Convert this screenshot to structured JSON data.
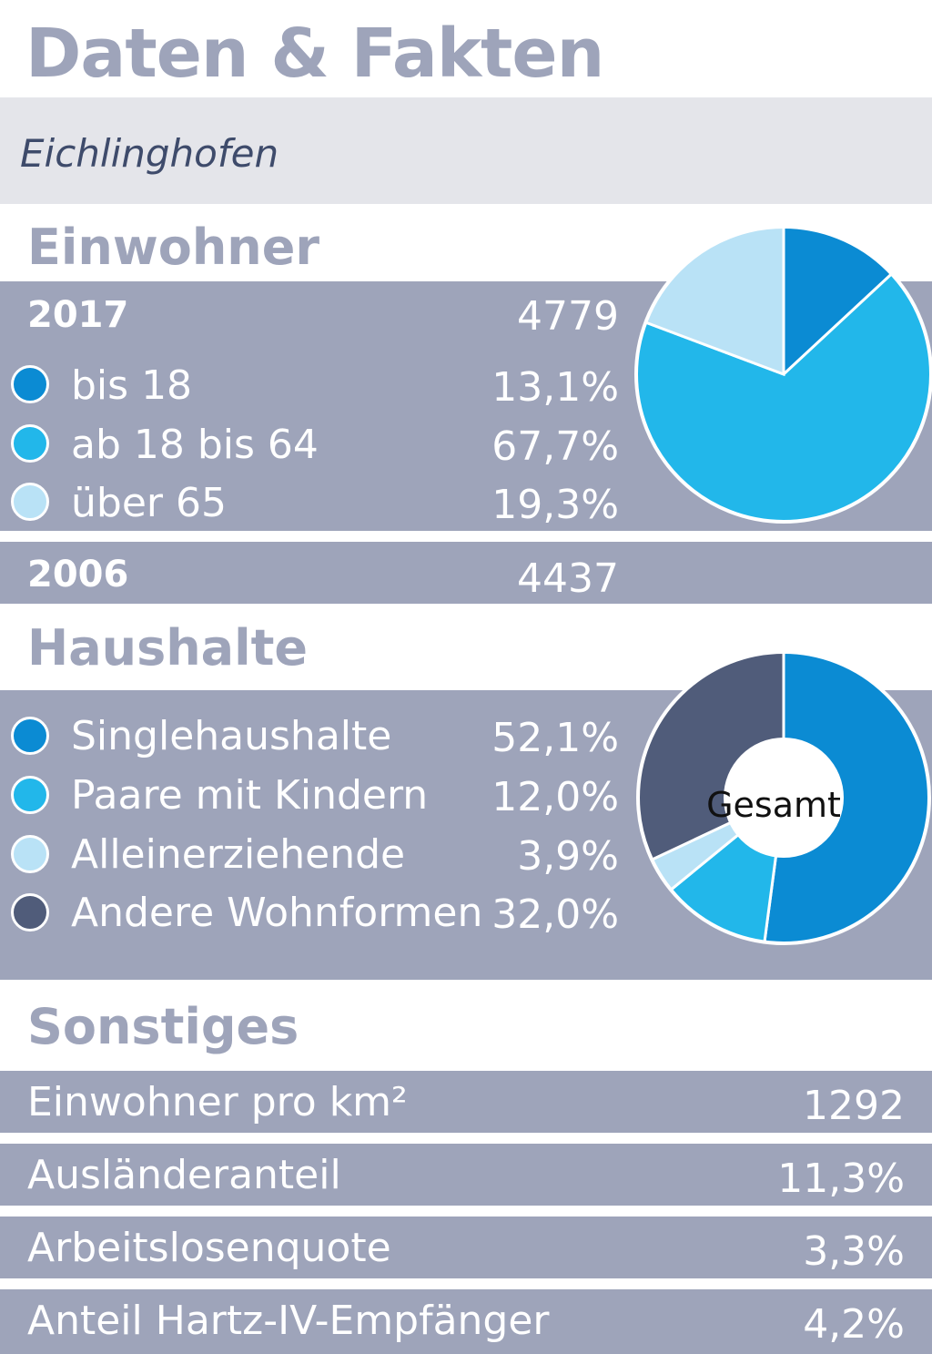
{
  "header": {
    "title": "Daten & Fakten",
    "location": "Eichlinghofen"
  },
  "einwohner": {
    "heading": "Einwohner",
    "rows": [
      {
        "year": "2017",
        "value": "4779"
      },
      {
        "year": "2006",
        "value": "4437"
      }
    ],
    "legend": [
      {
        "label": "bis 18",
        "value": "13,1%",
        "color": "#0b8bd3"
      },
      {
        "label": "ab 18 bis 64",
        "value": "67,7%",
        "color": "#22b7ea"
      },
      {
        "label": "über 65",
        "value": "19,3%",
        "color": "#b9e2f6"
      }
    ]
  },
  "haushalte": {
    "heading": "Haushalte",
    "center_label": "Gesamt",
    "legend": [
      {
        "label": "Singlehaushalte",
        "value": "52,1%",
        "color": "#0b8bd3"
      },
      {
        "label": "Paare mit Kindern",
        "value": "12,0%",
        "color": "#22b7ea"
      },
      {
        "label": "Alleinerziehende",
        "value": "3,9%",
        "color": "#b9e2f6"
      },
      {
        "label": "Andere Wohnformen",
        "value": "32,0%",
        "color": "#505c7a"
      }
    ]
  },
  "sonstiges": {
    "heading": "Sonstiges",
    "rows": [
      {
        "label": "Einwohner pro km²",
        "value": "1292"
      },
      {
        "label": "Ausländeranteil",
        "value": "11,3%"
      },
      {
        "label": "Arbeitslosenquote",
        "value": "3,3%"
      },
      {
        "label": "Anteil Hartz-IV-Empfänger",
        "value": "4,2%"
      }
    ]
  },
  "chart_data": [
    {
      "type": "pie",
      "title": "Einwohner",
      "categories": [
        "bis 18",
        "ab 18 bis 64",
        "über 65"
      ],
      "values": [
        13.1,
        67.7,
        19.3
      ],
      "colors": [
        "#0b8bd3",
        "#22b7ea",
        "#b9e2f6"
      ],
      "unit": "%"
    },
    {
      "type": "pie",
      "title": "Haushalte",
      "categories": [
        "Singlehaushalte",
        "Paare mit Kindern",
        "Alleinerziehende",
        "Andere Wohnformen"
      ],
      "values": [
        52.1,
        12.0,
        3.9,
        32.0
      ],
      "colors": [
        "#0b8bd3",
        "#22b7ea",
        "#b9e2f6",
        "#505c7a"
      ],
      "unit": "%",
      "center_label": "Gesamt"
    }
  ]
}
